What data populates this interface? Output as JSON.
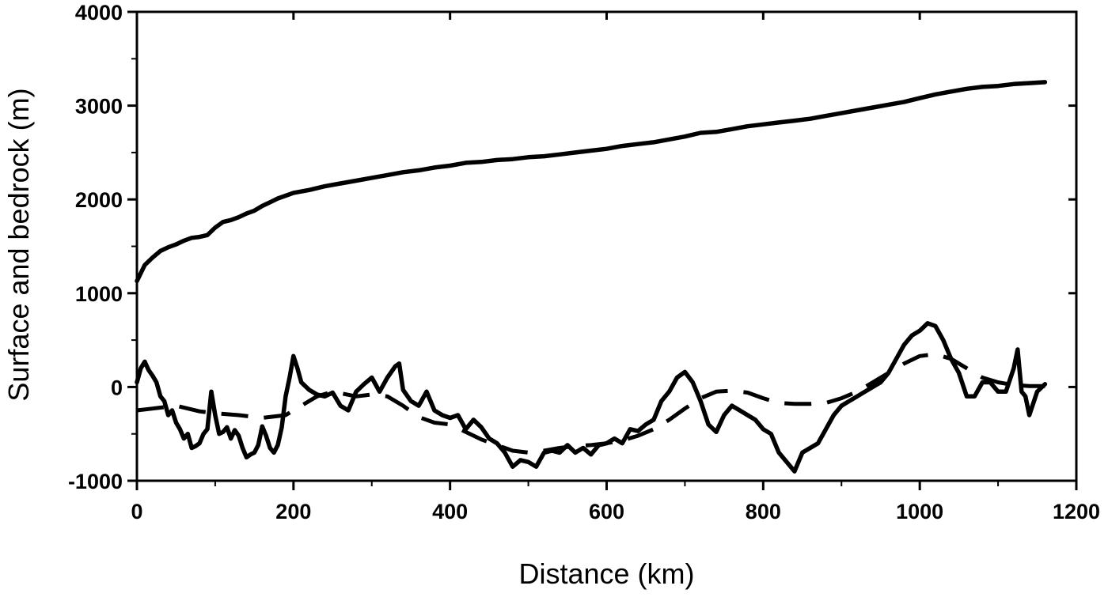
{
  "chart_data": {
    "type": "line",
    "title": "",
    "xlabel": "Distance (km)",
    "ylabel": "Surface and bedrock (m)",
    "xlim": [
      0,
      1200
    ],
    "ylim": [
      -1000,
      4000
    ],
    "x_ticks": [
      0,
      200,
      400,
      600,
      800,
      1000,
      1200
    ],
    "y_ticks": [
      -1000,
      0,
      1000,
      2000,
      3000,
      4000
    ],
    "x_tick_labels": [
      "0",
      "200",
      "400",
      "600",
      "800",
      "1000",
      "1200"
    ],
    "y_tick_labels": [
      "-1000",
      "0",
      "1000",
      "2000",
      "3000",
      "4000"
    ],
    "grid": false,
    "legend": "none",
    "colors": {
      "line": "#000000",
      "background": "#ffffff"
    },
    "series": [
      {
        "style": "solid",
        "points": [
          [
            0,
            1130
          ],
          [
            10,
            1300
          ],
          [
            20,
            1380
          ],
          [
            30,
            1450
          ],
          [
            40,
            1490
          ],
          [
            50,
            1520
          ],
          [
            60,
            1560
          ],
          [
            70,
            1590
          ],
          [
            80,
            1600
          ],
          [
            90,
            1620
          ],
          [
            100,
            1700
          ],
          [
            110,
            1760
          ],
          [
            120,
            1780
          ],
          [
            130,
            1810
          ],
          [
            140,
            1850
          ],
          [
            150,
            1880
          ],
          [
            160,
            1930
          ],
          [
            170,
            1970
          ],
          [
            180,
            2010
          ],
          [
            190,
            2040
          ],
          [
            200,
            2070
          ],
          [
            220,
            2100
          ],
          [
            240,
            2140
          ],
          [
            260,
            2170
          ],
          [
            280,
            2200
          ],
          [
            300,
            2230
          ],
          [
            320,
            2260
          ],
          [
            340,
            2290
          ],
          [
            360,
            2310
          ],
          [
            380,
            2340
          ],
          [
            400,
            2360
          ],
          [
            420,
            2390
          ],
          [
            440,
            2400
          ],
          [
            460,
            2420
          ],
          [
            480,
            2430
          ],
          [
            500,
            2450
          ],
          [
            520,
            2460
          ],
          [
            540,
            2480
          ],
          [
            560,
            2500
          ],
          [
            580,
            2520
          ],
          [
            600,
            2540
          ],
          [
            620,
            2570
          ],
          [
            640,
            2590
          ],
          [
            660,
            2610
          ],
          [
            680,
            2640
          ],
          [
            700,
            2670
          ],
          [
            720,
            2710
          ],
          [
            740,
            2720
          ],
          [
            760,
            2750
          ],
          [
            780,
            2780
          ],
          [
            800,
            2800
          ],
          [
            820,
            2820
          ],
          [
            840,
            2840
          ],
          [
            860,
            2860
          ],
          [
            880,
            2890
          ],
          [
            900,
            2920
          ],
          [
            920,
            2950
          ],
          [
            940,
            2980
          ],
          [
            960,
            3010
          ],
          [
            980,
            3040
          ],
          [
            1000,
            3080
          ],
          [
            1020,
            3120
          ],
          [
            1040,
            3150
          ],
          [
            1060,
            3180
          ],
          [
            1080,
            3200
          ],
          [
            1100,
            3210
          ],
          [
            1120,
            3230
          ],
          [
            1140,
            3240
          ],
          [
            1160,
            3250
          ]
        ]
      },
      {
        "style": "solid",
        "points": [
          [
            0,
            50
          ],
          [
            5,
            200
          ],
          [
            10,
            270
          ],
          [
            15,
            180
          ],
          [
            20,
            120
          ],
          [
            25,
            50
          ],
          [
            30,
            -100
          ],
          [
            35,
            -150
          ],
          [
            40,
            -300
          ],
          [
            45,
            -250
          ],
          [
            50,
            -380
          ],
          [
            55,
            -450
          ],
          [
            60,
            -550
          ],
          [
            65,
            -500
          ],
          [
            70,
            -650
          ],
          [
            75,
            -630
          ],
          [
            80,
            -600
          ],
          [
            85,
            -500
          ],
          [
            90,
            -450
          ],
          [
            95,
            -50
          ],
          [
            100,
            -300
          ],
          [
            105,
            -500
          ],
          [
            110,
            -480
          ],
          [
            115,
            -430
          ],
          [
            120,
            -550
          ],
          [
            125,
            -460
          ],
          [
            130,
            -520
          ],
          [
            135,
            -650
          ],
          [
            140,
            -750
          ],
          [
            145,
            -720
          ],
          [
            150,
            -700
          ],
          [
            155,
            -620
          ],
          [
            160,
            -420
          ],
          [
            165,
            -520
          ],
          [
            170,
            -650
          ],
          [
            175,
            -700
          ],
          [
            180,
            -620
          ],
          [
            185,
            -430
          ],
          [
            190,
            -100
          ],
          [
            195,
            100
          ],
          [
            200,
            330
          ],
          [
            205,
            200
          ],
          [
            210,
            50
          ],
          [
            220,
            -30
          ],
          [
            230,
            -80
          ],
          [
            240,
            -100
          ],
          [
            250,
            -60
          ],
          [
            260,
            -200
          ],
          [
            270,
            -250
          ],
          [
            280,
            -50
          ],
          [
            290,
            30
          ],
          [
            300,
            100
          ],
          [
            310,
            -50
          ],
          [
            320,
            100
          ],
          [
            330,
            220
          ],
          [
            335,
            250
          ],
          [
            340,
            -30
          ],
          [
            350,
            -150
          ],
          [
            360,
            -200
          ],
          [
            370,
            -50
          ],
          [
            380,
            -250
          ],
          [
            390,
            -300
          ],
          [
            400,
            -330
          ],
          [
            410,
            -300
          ],
          [
            420,
            -450
          ],
          [
            430,
            -350
          ],
          [
            440,
            -430
          ],
          [
            450,
            -550
          ],
          [
            460,
            -600
          ],
          [
            470,
            -700
          ],
          [
            480,
            -850
          ],
          [
            490,
            -780
          ],
          [
            500,
            -800
          ],
          [
            510,
            -850
          ],
          [
            520,
            -700
          ],
          [
            530,
            -680
          ],
          [
            540,
            -700
          ],
          [
            550,
            -620
          ],
          [
            560,
            -700
          ],
          [
            570,
            -650
          ],
          [
            580,
            -720
          ],
          [
            590,
            -620
          ],
          [
            600,
            -600
          ],
          [
            610,
            -550
          ],
          [
            620,
            -600
          ],
          [
            630,
            -450
          ],
          [
            640,
            -470
          ],
          [
            650,
            -400
          ],
          [
            660,
            -350
          ],
          [
            670,
            -150
          ],
          [
            680,
            -50
          ],
          [
            690,
            100
          ],
          [
            700,
            160
          ],
          [
            710,
            50
          ],
          [
            720,
            -150
          ],
          [
            730,
            -400
          ],
          [
            740,
            -480
          ],
          [
            750,
            -300
          ],
          [
            760,
            -200
          ],
          [
            770,
            -250
          ],
          [
            780,
            -300
          ],
          [
            790,
            -350
          ],
          [
            800,
            -450
          ],
          [
            810,
            -500
          ],
          [
            820,
            -700
          ],
          [
            830,
            -800
          ],
          [
            840,
            -900
          ],
          [
            850,
            -700
          ],
          [
            860,
            -650
          ],
          [
            870,
            -600
          ],
          [
            880,
            -450
          ],
          [
            890,
            -300
          ],
          [
            900,
            -200
          ],
          [
            910,
            -150
          ],
          [
            920,
            -100
          ],
          [
            930,
            -50
          ],
          [
            940,
            0
          ],
          [
            950,
            50
          ],
          [
            960,
            150
          ],
          [
            970,
            300
          ],
          [
            980,
            450
          ],
          [
            990,
            550
          ],
          [
            1000,
            600
          ],
          [
            1010,
            680
          ],
          [
            1020,
            650
          ],
          [
            1030,
            500
          ],
          [
            1040,
            300
          ],
          [
            1050,
            150
          ],
          [
            1060,
            -100
          ],
          [
            1070,
            -100
          ],
          [
            1080,
            50
          ],
          [
            1090,
            50
          ],
          [
            1100,
            -50
          ],
          [
            1110,
            -50
          ],
          [
            1120,
            200
          ],
          [
            1125,
            400
          ],
          [
            1130,
            -50
          ],
          [
            1135,
            -100
          ],
          [
            1140,
            -300
          ],
          [
            1150,
            -50
          ],
          [
            1160,
            30
          ]
        ]
      },
      {
        "style": "dashed",
        "points": [
          [
            0,
            -250
          ],
          [
            20,
            -230
          ],
          [
            50,
            -200
          ],
          [
            80,
            -260
          ],
          [
            100,
            -280
          ],
          [
            130,
            -300
          ],
          [
            160,
            -330
          ],
          [
            190,
            -300
          ],
          [
            210,
            -200
          ],
          [
            230,
            -100
          ],
          [
            250,
            -50
          ],
          [
            280,
            -100
          ],
          [
            300,
            -80
          ],
          [
            320,
            -100
          ],
          [
            340,
            -200
          ],
          [
            360,
            -320
          ],
          [
            380,
            -380
          ],
          [
            400,
            -400
          ],
          [
            420,
            -480
          ],
          [
            440,
            -560
          ],
          [
            460,
            -620
          ],
          [
            480,
            -680
          ],
          [
            500,
            -700
          ],
          [
            520,
            -680
          ],
          [
            540,
            -650
          ],
          [
            560,
            -630
          ],
          [
            580,
            -620
          ],
          [
            600,
            -600
          ],
          [
            620,
            -570
          ],
          [
            640,
            -520
          ],
          [
            660,
            -450
          ],
          [
            680,
            -350
          ],
          [
            700,
            -230
          ],
          [
            720,
            -120
          ],
          [
            740,
            -50
          ],
          [
            760,
            -40
          ],
          [
            780,
            -60
          ],
          [
            800,
            -120
          ],
          [
            820,
            -170
          ],
          [
            840,
            -180
          ],
          [
            860,
            -180
          ],
          [
            880,
            -170
          ],
          [
            900,
            -120
          ],
          [
            920,
            -50
          ],
          [
            940,
            50
          ],
          [
            960,
            150
          ],
          [
            980,
            250
          ],
          [
            1000,
            330
          ],
          [
            1020,
            350
          ],
          [
            1040,
            300
          ],
          [
            1060,
            200
          ],
          [
            1080,
            100
          ],
          [
            1100,
            50
          ],
          [
            1120,
            20
          ],
          [
            1140,
            10
          ],
          [
            1160,
            10
          ]
        ]
      }
    ]
  }
}
